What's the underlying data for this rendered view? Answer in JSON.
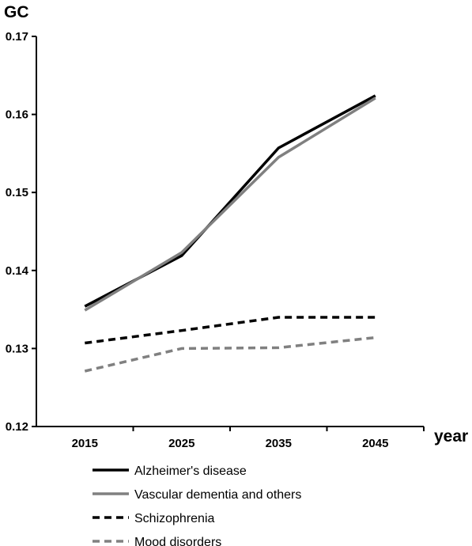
{
  "chart_data": {
    "type": "line",
    "title": "",
    "ylabel": "GC",
    "xlabel": "year",
    "categories": [
      "2015",
      "2025",
      "2035",
      "2045"
    ],
    "ylim": [
      0.12,
      0.17
    ],
    "yticks": [
      "0.12",
      "0.13",
      "0.14",
      "0.15",
      "0.16",
      "0.17"
    ],
    "grid": false,
    "legend_position": "bottom",
    "series": [
      {
        "name": "Alzheimer's disease",
        "values": [
          0.1354,
          0.1419,
          0.1557,
          0.1624
        ],
        "color": "#000000",
        "style": "solid"
      },
      {
        "name": "Vascular dementia and others",
        "values": [
          0.1349,
          0.1423,
          0.1545,
          0.1621
        ],
        "color": "#808080",
        "style": "solid"
      },
      {
        "name": "Schizophrenia",
        "values": [
          0.1307,
          0.1323,
          0.134,
          0.134
        ],
        "color": "#000000",
        "style": "dashed"
      },
      {
        "name": "Mood disorders",
        "values": [
          0.1271,
          0.13,
          0.1301,
          0.1314
        ],
        "color": "#808080",
        "style": "dashed"
      }
    ]
  }
}
